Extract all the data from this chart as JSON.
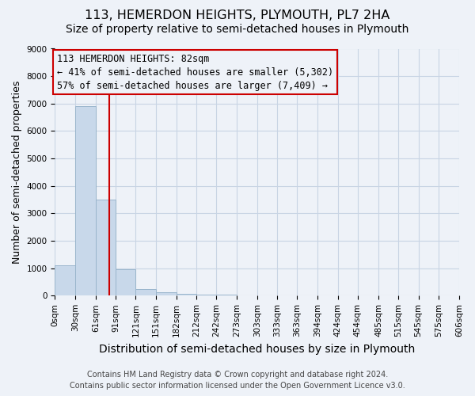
{
  "title": "113, HEMERDON HEIGHTS, PLYMOUTH, PL7 2HA",
  "subtitle": "Size of property relative to semi-detached houses in Plymouth",
  "xlabel": "Distribution of semi-detached houses by size in Plymouth",
  "ylabel": "Number of semi-detached properties",
  "annotation_line1": "113 HEMERDON HEIGHTS: 82sqm",
  "annotation_line2": "← 41% of semi-detached houses are smaller (5,302)",
  "annotation_line3": "57% of semi-detached houses are larger (7,409) →",
  "footer_line1": "Contains HM Land Registry data © Crown copyright and database right 2024.",
  "footer_line2": "Contains public sector information licensed under the Open Government Licence v3.0.",
  "bar_edges": [
    0,
    30,
    61,
    91,
    121,
    151,
    182,
    212,
    242,
    273,
    303,
    333,
    363,
    394,
    424,
    454,
    485,
    515,
    545,
    575,
    606
  ],
  "bar_heights": [
    1100,
    6900,
    3500,
    950,
    250,
    120,
    60,
    50,
    30,
    10,
    5,
    3,
    2,
    1,
    1,
    0,
    0,
    0,
    0,
    0
  ],
  "bar_color": "#c8d8ea",
  "bar_edge_color": "#9ab5cc",
  "vline_x": 82,
  "vline_color": "#cc0000",
  "ylim": [
    0,
    9000
  ],
  "yticks": [
    0,
    1000,
    2000,
    3000,
    4000,
    5000,
    6000,
    7000,
    8000,
    9000
  ],
  "grid_color": "#c8d4e4",
  "background_color": "#eef2f8",
  "title_fontsize": 11.5,
  "subtitle_fontsize": 10,
  "xlabel_fontsize": 10,
  "ylabel_fontsize": 9,
  "tick_fontsize": 7.5,
  "footer_fontsize": 7,
  "annot_fontsize": 8.5
}
